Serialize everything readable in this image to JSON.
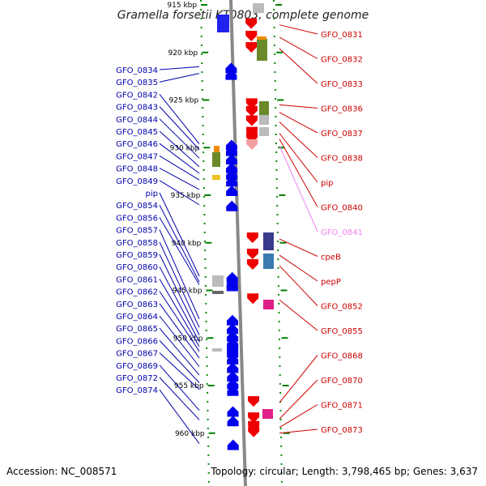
{
  "title": "Gramella forsetii KT0803, complete genome",
  "footer": {
    "accession": "Accession: NC_008571",
    "topology": "Topology: circular; Length: 3,798,465 bp; Genes: 3,637"
  },
  "colors": {
    "forward_gene": "#0000ee",
    "reverse_gene": "#ee0000",
    "left_label": "#0000aa",
    "right_label": "#cc0000",
    "pseudo_label": "#ee82ee",
    "backbone": "#888888",
    "tick": "#008000"
  },
  "scale": {
    "unit": "kbp",
    "major_ticks": [
      {
        "kbp": 915,
        "label": "915 kbp"
      },
      {
        "kbp": 920,
        "label": "920 kbp"
      },
      {
        "kbp": 925,
        "label": "925 kbp"
      },
      {
        "kbp": 930,
        "label": "930 kbp"
      },
      {
        "kbp": 935,
        "label": "935 kbp"
      },
      {
        "kbp": 940,
        "label": "940 kbp"
      },
      {
        "kbp": 945,
        "label": "945 kbp"
      },
      {
        "kbp": 950,
        "label": "950 kbp"
      },
      {
        "kbp": 955,
        "label": "955 kbp"
      },
      {
        "kbp": 960,
        "label": "960 kbp"
      }
    ]
  },
  "forward_genes": [
    {
      "label": "GFO_0834",
      "kbp": 921.5
    },
    {
      "label": "GFO_0835",
      "kbp": 922.2
    },
    {
      "label": "GFO_0842",
      "kbp": 929.6
    },
    {
      "label": "GFO_0843",
      "kbp": 930.2
    },
    {
      "label": "GFO_0844",
      "kbp": 931.1
    },
    {
      "label": "GFO_0845",
      "kbp": 932.0
    },
    {
      "label": "GFO_0846",
      "kbp": 932.7
    },
    {
      "label": "GFO_0847",
      "kbp": 933.4
    },
    {
      "label": "GFO_0848",
      "kbp": 934.4
    },
    {
      "label": "GFO_0849",
      "kbp": 936.0
    },
    {
      "label": "pip",
      "kbp": 943.5
    },
    {
      "label": "GFO_0854",
      "kbp": 944.1
    },
    {
      "label": "GFO_0856",
      "kbp": 944.4
    },
    {
      "label": "GFO_0857",
      "kbp": 948.0
    },
    {
      "label": "GFO_0858",
      "kbp": 948.9
    },
    {
      "label": "GFO_0859",
      "kbp": 949.7
    },
    {
      "label": "GFO_0860",
      "kbp": 950.4
    },
    {
      "label": "GFO_0861",
      "kbp": 950.9
    },
    {
      "label": "GFO_0862",
      "kbp": 951.4
    },
    {
      "label": "GFO_0863",
      "kbp": 952.1
    },
    {
      "label": "GFO_0864",
      "kbp": 953.0
    },
    {
      "label": "GFO_0865",
      "kbp": 953.9
    },
    {
      "label": "GFO_0866",
      "kbp": 954.7
    },
    {
      "label": "GFO_0867",
      "kbp": 955.4
    },
    {
      "label": "GFO_0869",
      "kbp": 957.6
    },
    {
      "label": "GFO_0872",
      "kbp": 958.6
    },
    {
      "label": "GFO_0874",
      "kbp": 961.1
    }
  ],
  "reverse_genes": [
    {
      "label": "GFO_0831",
      "kbp": 917.1
    },
    {
      "label": "GFO_0832",
      "kbp": 918.4
    },
    {
      "label": "GFO_0833",
      "kbp": 919.6
    },
    {
      "label": "GFO_0836",
      "kbp": 925.5
    },
    {
      "label": "GFO_0837",
      "kbp": 926.3
    },
    {
      "label": "GFO_0838",
      "kbp": 927.3
    },
    {
      "label": "pip",
      "kbp": 928.5
    },
    {
      "label": "GFO_0840",
      "kbp": 929.1
    },
    {
      "label": "GFO_0841",
      "kbp": 929.8,
      "pseudo": true
    },
    {
      "label": "cpeB",
      "kbp": 939.6
    },
    {
      "label": "pepP",
      "kbp": 941.3
    },
    {
      "label": "GFO_0852",
      "kbp": 942.4
    },
    {
      "label": "GFO_0855",
      "kbp": 946.0
    },
    {
      "label": "GFO_0868",
      "kbp": 956.8
    },
    {
      "label": "GFO_0870",
      "kbp": 958.5
    },
    {
      "label": "GFO_0871",
      "kbp": 959.4
    },
    {
      "label": "GFO_0873",
      "kbp": 960.0
    }
  ]
}
